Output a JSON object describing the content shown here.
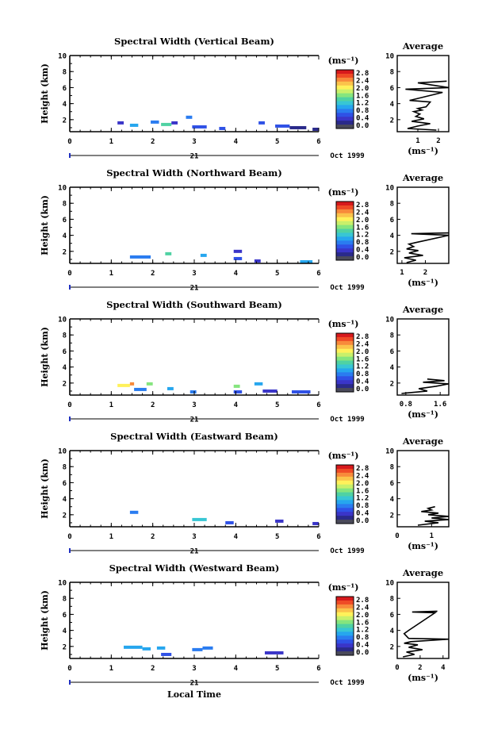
{
  "figure": {
    "x_axis_label": "Local Time",
    "date_label": "Oct 1999",
    "day_label": "21",
    "average_title": "Average",
    "unit_label": "(ms⁻¹)",
    "height_label": "Height (km)",
    "colorbar_ticks": [
      "2.8",
      "2.4",
      "2.0",
      "1.6",
      "1.2",
      "0.8",
      "0.4",
      "0.0"
    ],
    "colorbar_colors": [
      "#d7191c",
      "#ef4a26",
      "#f88a3b",
      "#fbc34b",
      "#fff15a",
      "#c9f06a",
      "#85e57e",
      "#4fd2a3",
      "#38c6d4",
      "#26a6ee",
      "#2a7cf0",
      "#2f51e6",
      "#3a35c8",
      "#2a2a8a",
      "#4a4a5a"
    ]
  },
  "chart_data": [
    {
      "type": "heatmap",
      "title": "Spectral Width (Vertical Beam)",
      "xlabel": "",
      "ylabel": "Height (km)",
      "xlim": [
        0,
        6
      ],
      "ylim": [
        0.5,
        10
      ],
      "x_ticks": [
        0,
        1,
        2,
        3,
        4,
        5,
        6
      ],
      "y_ticks": [
        2,
        4,
        6,
        8,
        10
      ],
      "cells": [
        {
          "t0": 1.15,
          "t1": 1.3,
          "h": 1.6,
          "v": 0.5
        },
        {
          "t0": 1.45,
          "t1": 1.65,
          "h": 1.3,
          "v": 1.1
        },
        {
          "t0": 1.95,
          "t1": 2.15,
          "h": 1.7,
          "v": 0.9
        },
        {
          "t0": 2.2,
          "t1": 2.45,
          "h": 1.4,
          "v": 1.5
        },
        {
          "t0": 2.45,
          "t1": 2.6,
          "h": 1.6,
          "v": 0.5
        },
        {
          "t0": 2.8,
          "t1": 2.95,
          "h": 2.3,
          "v": 0.9
        },
        {
          "t0": 2.95,
          "t1": 3.3,
          "h": 1.1,
          "v": 0.7
        },
        {
          "t0": 3.6,
          "t1": 3.75,
          "h": 0.9,
          "v": 0.6
        },
        {
          "t0": 4.55,
          "t1": 4.7,
          "h": 1.6,
          "v": 0.6
        },
        {
          "t0": 4.95,
          "t1": 5.3,
          "h": 1.2,
          "v": 0.6
        },
        {
          "t0": 5.3,
          "t1": 5.7,
          "h": 1.0,
          "v": 0.2
        },
        {
          "t0": 5.85,
          "t1": 6.0,
          "h": 0.8,
          "v": 0.3
        }
      ],
      "average": {
        "xlim": [
          0,
          2.5
        ],
        "x_ticks": [
          1,
          2
        ],
        "x": [
          1.9,
          0.5,
          1.0,
          1.6,
          0.7,
          1.3,
          0.9,
          1.1,
          0.8,
          1.2,
          1.0,
          1.4,
          1.6,
          0.6,
          2.2,
          0.4,
          2.5,
          1.0,
          2.4
        ],
        "y": [
          0.7,
          0.9,
          1.2,
          1.5,
          1.8,
          2.1,
          2.4,
          2.7,
          3.0,
          3.2,
          3.4,
          3.6,
          4.2,
          4.4,
          5.4,
          5.8,
          6.0,
          6.6,
          6.8
        ]
      }
    },
    {
      "type": "heatmap",
      "title": "Spectral Width (Northward Beam)",
      "xlabel": "",
      "ylabel": "Height (km)",
      "xlim": [
        0,
        6
      ],
      "ylim": [
        0.5,
        10
      ],
      "x_ticks": [
        0,
        1,
        2,
        3,
        4,
        5,
        6
      ],
      "y_ticks": [
        2,
        4,
        6,
        8,
        10
      ],
      "cells": [
        {
          "t0": 1.45,
          "t1": 1.95,
          "h": 1.3,
          "v": 0.8
        },
        {
          "t0": 2.3,
          "t1": 2.45,
          "h": 1.7,
          "v": 1.5
        },
        {
          "t0": 3.15,
          "t1": 3.3,
          "h": 1.5,
          "v": 1.0
        },
        {
          "t0": 3.95,
          "t1": 4.15,
          "h": 2.0,
          "v": 0.5
        },
        {
          "t0": 3.95,
          "t1": 4.15,
          "h": 1.1,
          "v": 0.7
        },
        {
          "t0": 4.45,
          "t1": 4.6,
          "h": 0.8,
          "v": 0.5
        },
        {
          "t0": 5.55,
          "t1": 5.85,
          "h": 0.7,
          "v": 1.1
        }
      ],
      "average": {
        "xlim": [
          0.8,
          3.0
        ],
        "x_ticks": [
          1,
          2
        ],
        "x": [
          1.2,
          1.6,
          1.1,
          1.9,
          1.3,
          1.7,
          1.2,
          1.5,
          1.3,
          1.6,
          3.0,
          1.4,
          3.0
        ],
        "y": [
          0.6,
          0.9,
          1.2,
          1.5,
          1.8,
          2.1,
          2.3,
          2.6,
          2.9,
          3.1,
          4.0,
          4.2,
          4.3
        ]
      }
    },
    {
      "type": "heatmap",
      "title": "Spectral Width (Southward Beam)",
      "xlabel": "",
      "ylabel": "Height (km)",
      "xlim": [
        0,
        6
      ],
      "ylim": [
        0.5,
        10
      ],
      "x_ticks": [
        0,
        1,
        2,
        3,
        4,
        5,
        6
      ],
      "y_ticks": [
        2,
        4,
        6,
        8,
        10
      ],
      "cells": [
        {
          "t0": 1.15,
          "t1": 1.45,
          "h": 1.7,
          "v": 2.2
        },
        {
          "t0": 1.45,
          "t1": 1.55,
          "h": 1.9,
          "v": 2.6
        },
        {
          "t0": 1.55,
          "t1": 1.85,
          "h": 1.2,
          "v": 0.9
        },
        {
          "t0": 1.85,
          "t1": 2.0,
          "h": 1.9,
          "v": 1.8
        },
        {
          "t0": 2.35,
          "t1": 2.5,
          "h": 1.3,
          "v": 1.0
        },
        {
          "t0": 2.9,
          "t1": 3.05,
          "h": 0.9,
          "v": 0.9
        },
        {
          "t0": 3.95,
          "t1": 4.1,
          "h": 1.6,
          "v": 1.8
        },
        {
          "t0": 3.95,
          "t1": 4.15,
          "h": 0.9,
          "v": 0.6
        },
        {
          "t0": 4.45,
          "t1": 4.65,
          "h": 1.9,
          "v": 1.0
        },
        {
          "t0": 4.65,
          "t1": 5.0,
          "h": 1.0,
          "v": 0.5
        },
        {
          "t0": 5.35,
          "t1": 5.8,
          "h": 0.9,
          "v": 0.6
        }
      ],
      "average": {
        "xlim": [
          0.6,
          1.8
        ],
        "x_ticks": [
          0.8,
          1.6
        ],
        "x": [
          0.7,
          1.3,
          1.1,
          1.5,
          1.8,
          1.2,
          1.7,
          1.3
        ],
        "y": [
          0.7,
          1.0,
          1.3,
          1.6,
          1.9,
          2.1,
          2.3,
          2.5
        ]
      }
    },
    {
      "type": "heatmap",
      "title": "Spectral Width (Eastward Beam)",
      "xlabel": "",
      "ylabel": "Height (km)",
      "xlim": [
        0,
        6
      ],
      "ylim": [
        0.5,
        10
      ],
      "x_ticks": [
        0,
        1,
        2,
        3,
        4,
        5,
        6
      ],
      "y_ticks": [
        2,
        4,
        6,
        8,
        10
      ],
      "cells": [
        {
          "t0": 1.45,
          "t1": 1.65,
          "h": 2.3,
          "v": 0.9
        },
        {
          "t0": 2.95,
          "t1": 3.3,
          "h": 1.4,
          "v": 1.3
        },
        {
          "t0": 3.75,
          "t1": 3.95,
          "h": 1.0,
          "v": 0.6
        },
        {
          "t0": 4.95,
          "t1": 5.15,
          "h": 1.2,
          "v": 0.5
        },
        {
          "t0": 5.85,
          "t1": 6.0,
          "h": 0.9,
          "v": 0.5
        }
      ],
      "average": {
        "xlim": [
          0,
          1.5
        ],
        "x_ticks": [
          0,
          1
        ],
        "x": [
          0.6,
          1.2,
          0.8,
          1.5,
          1.0,
          1.5,
          0.9,
          1.2,
          0.7,
          1.0,
          0.9,
          1.1
        ],
        "y": [
          0.7,
          1.0,
          1.2,
          1.4,
          1.6,
          1.8,
          2.0,
          2.2,
          2.4,
          2.6,
          2.8,
          3.0
        ]
      }
    },
    {
      "type": "heatmap",
      "title": "Spectral Width (Westward Beam)",
      "xlabel": "Local Time",
      "ylabel": "Height (km)",
      "xlim": [
        0,
        6
      ],
      "ylim": [
        0.5,
        10
      ],
      "x_ticks": [
        0,
        1,
        2,
        3,
        4,
        5,
        6
      ],
      "y_ticks": [
        2,
        4,
        6,
        8,
        10
      ],
      "cells": [
        {
          "t0": 1.3,
          "t1": 1.75,
          "h": 1.9,
          "v": 1.0
        },
        {
          "t0": 1.75,
          "t1": 1.95,
          "h": 1.7,
          "v": 1.1
        },
        {
          "t0": 2.1,
          "t1": 2.3,
          "h": 1.8,
          "v": 1.0
        },
        {
          "t0": 2.2,
          "t1": 2.45,
          "h": 1.0,
          "v": 0.6
        },
        {
          "t0": 2.95,
          "t1": 3.2,
          "h": 1.6,
          "v": 0.9
        },
        {
          "t0": 3.2,
          "t1": 3.45,
          "h": 1.8,
          "v": 0.9
        },
        {
          "t0": 4.7,
          "t1": 5.15,
          "h": 1.2,
          "v": 0.5
        }
      ],
      "average": {
        "xlim": [
          0,
          4.5
        ],
        "x_ticks": [
          0,
          2,
          4
        ],
        "x": [
          0.5,
          1.5,
          0.8,
          2.2,
          1.0,
          1.8,
          0.6,
          1.2,
          4.5,
          1.0,
          0.6,
          1.0,
          3.3,
          1.3,
          3.5
        ],
        "y": [
          0.7,
          1.0,
          1.3,
          1.6,
          1.9,
          2.2,
          2.4,
          2.6,
          2.9,
          3.0,
          3.6,
          4.0,
          6.2,
          6.3,
          6.4
        ]
      }
    }
  ]
}
